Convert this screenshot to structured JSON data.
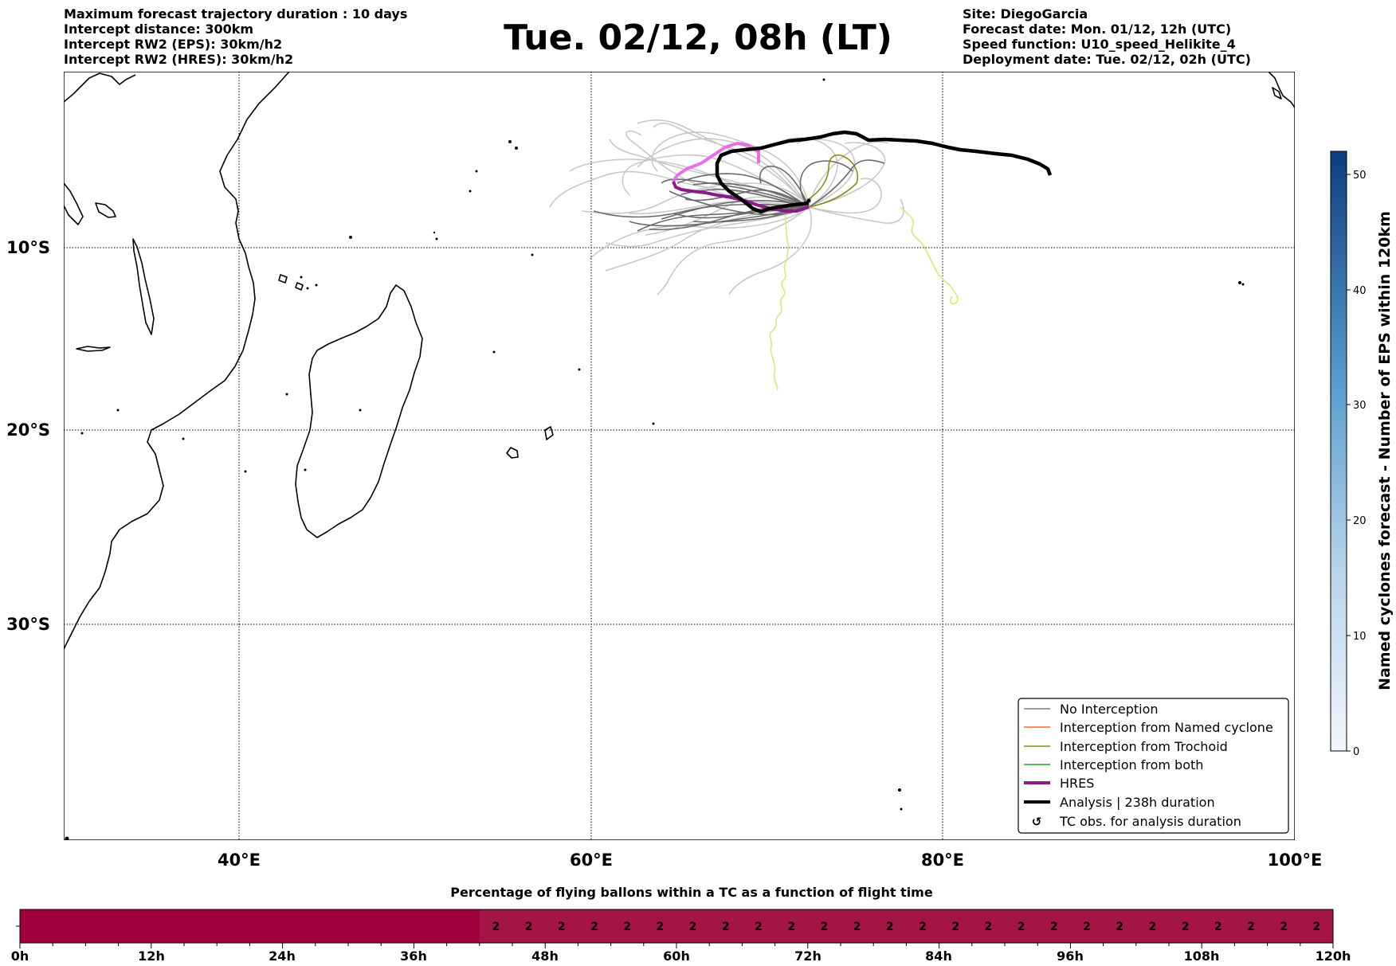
{
  "header": {
    "left_lines": [
      "Maximum forecast trajectory duration : 10 days",
      "Intercept distance: 300km",
      "Intercept RW2 (EPS):  30km/h2",
      "Intercept RW2 (HRES): 30km/h2"
    ],
    "title": "Tue. 02/12, 08h (LT)",
    "right_lines": [
      "Site: DiegoGarcia",
      "Forecast date: Mon. 01/12, 12h (UTC)",
      "Speed function: U10_speed_Helikite_4",
      "Deployment date: Tue. 02/12, 02h (UTC)"
    ]
  },
  "map": {
    "lat_labels": [
      "10°S",
      "20°S",
      "30°S"
    ],
    "lon_labels": [
      "40°E",
      "60°E",
      "80°E",
      "100°E"
    ]
  },
  "legend": {
    "items": [
      {
        "label": "No Interception",
        "color": "#7a7a7a"
      },
      {
        "label": "Interception from Named cyclone",
        "color": "#ff6a2a"
      },
      {
        "label": "Interception from Trochoid",
        "color": "#8b8b16"
      },
      {
        "label": "Interception from both",
        "color": "#2a9a2a"
      },
      {
        "label": "HRES",
        "color": "#8b1a8b"
      },
      {
        "label": "Analysis | 238h duration",
        "color": "#000000"
      },
      {
        "label": "TC obs. for analysis duration",
        "color": "#000000"
      }
    ]
  },
  "colorbar": {
    "title": "Named cyclones forecast - Number of EPS within 120km",
    "ticks": [
      "0",
      "10",
      "20",
      "30",
      "40",
      "50"
    ],
    "range": [
      0,
      52
    ],
    "color_low": "#f2f6fc",
    "color_high": "#0c3d7e"
  },
  "bar": {
    "title": "Percentage of flying ballons within a TC as a function of flight time",
    "tick_labels": [
      "0h",
      "12h",
      "24h",
      "36h",
      "48h",
      "60h",
      "72h",
      "84h",
      "96h",
      "108h",
      "120h"
    ],
    "cell_values": [
      "2",
      "2",
      "2",
      "2",
      "2",
      "2",
      "2",
      "2",
      "2",
      "2",
      "2",
      "2",
      "2",
      "2",
      "2",
      "2",
      "2",
      "2",
      "2",
      "2",
      "2",
      "2",
      "2",
      "2",
      "2",
      "2"
    ],
    "color_dark": "#a0003c",
    "color_light": "#a31544"
  }
}
